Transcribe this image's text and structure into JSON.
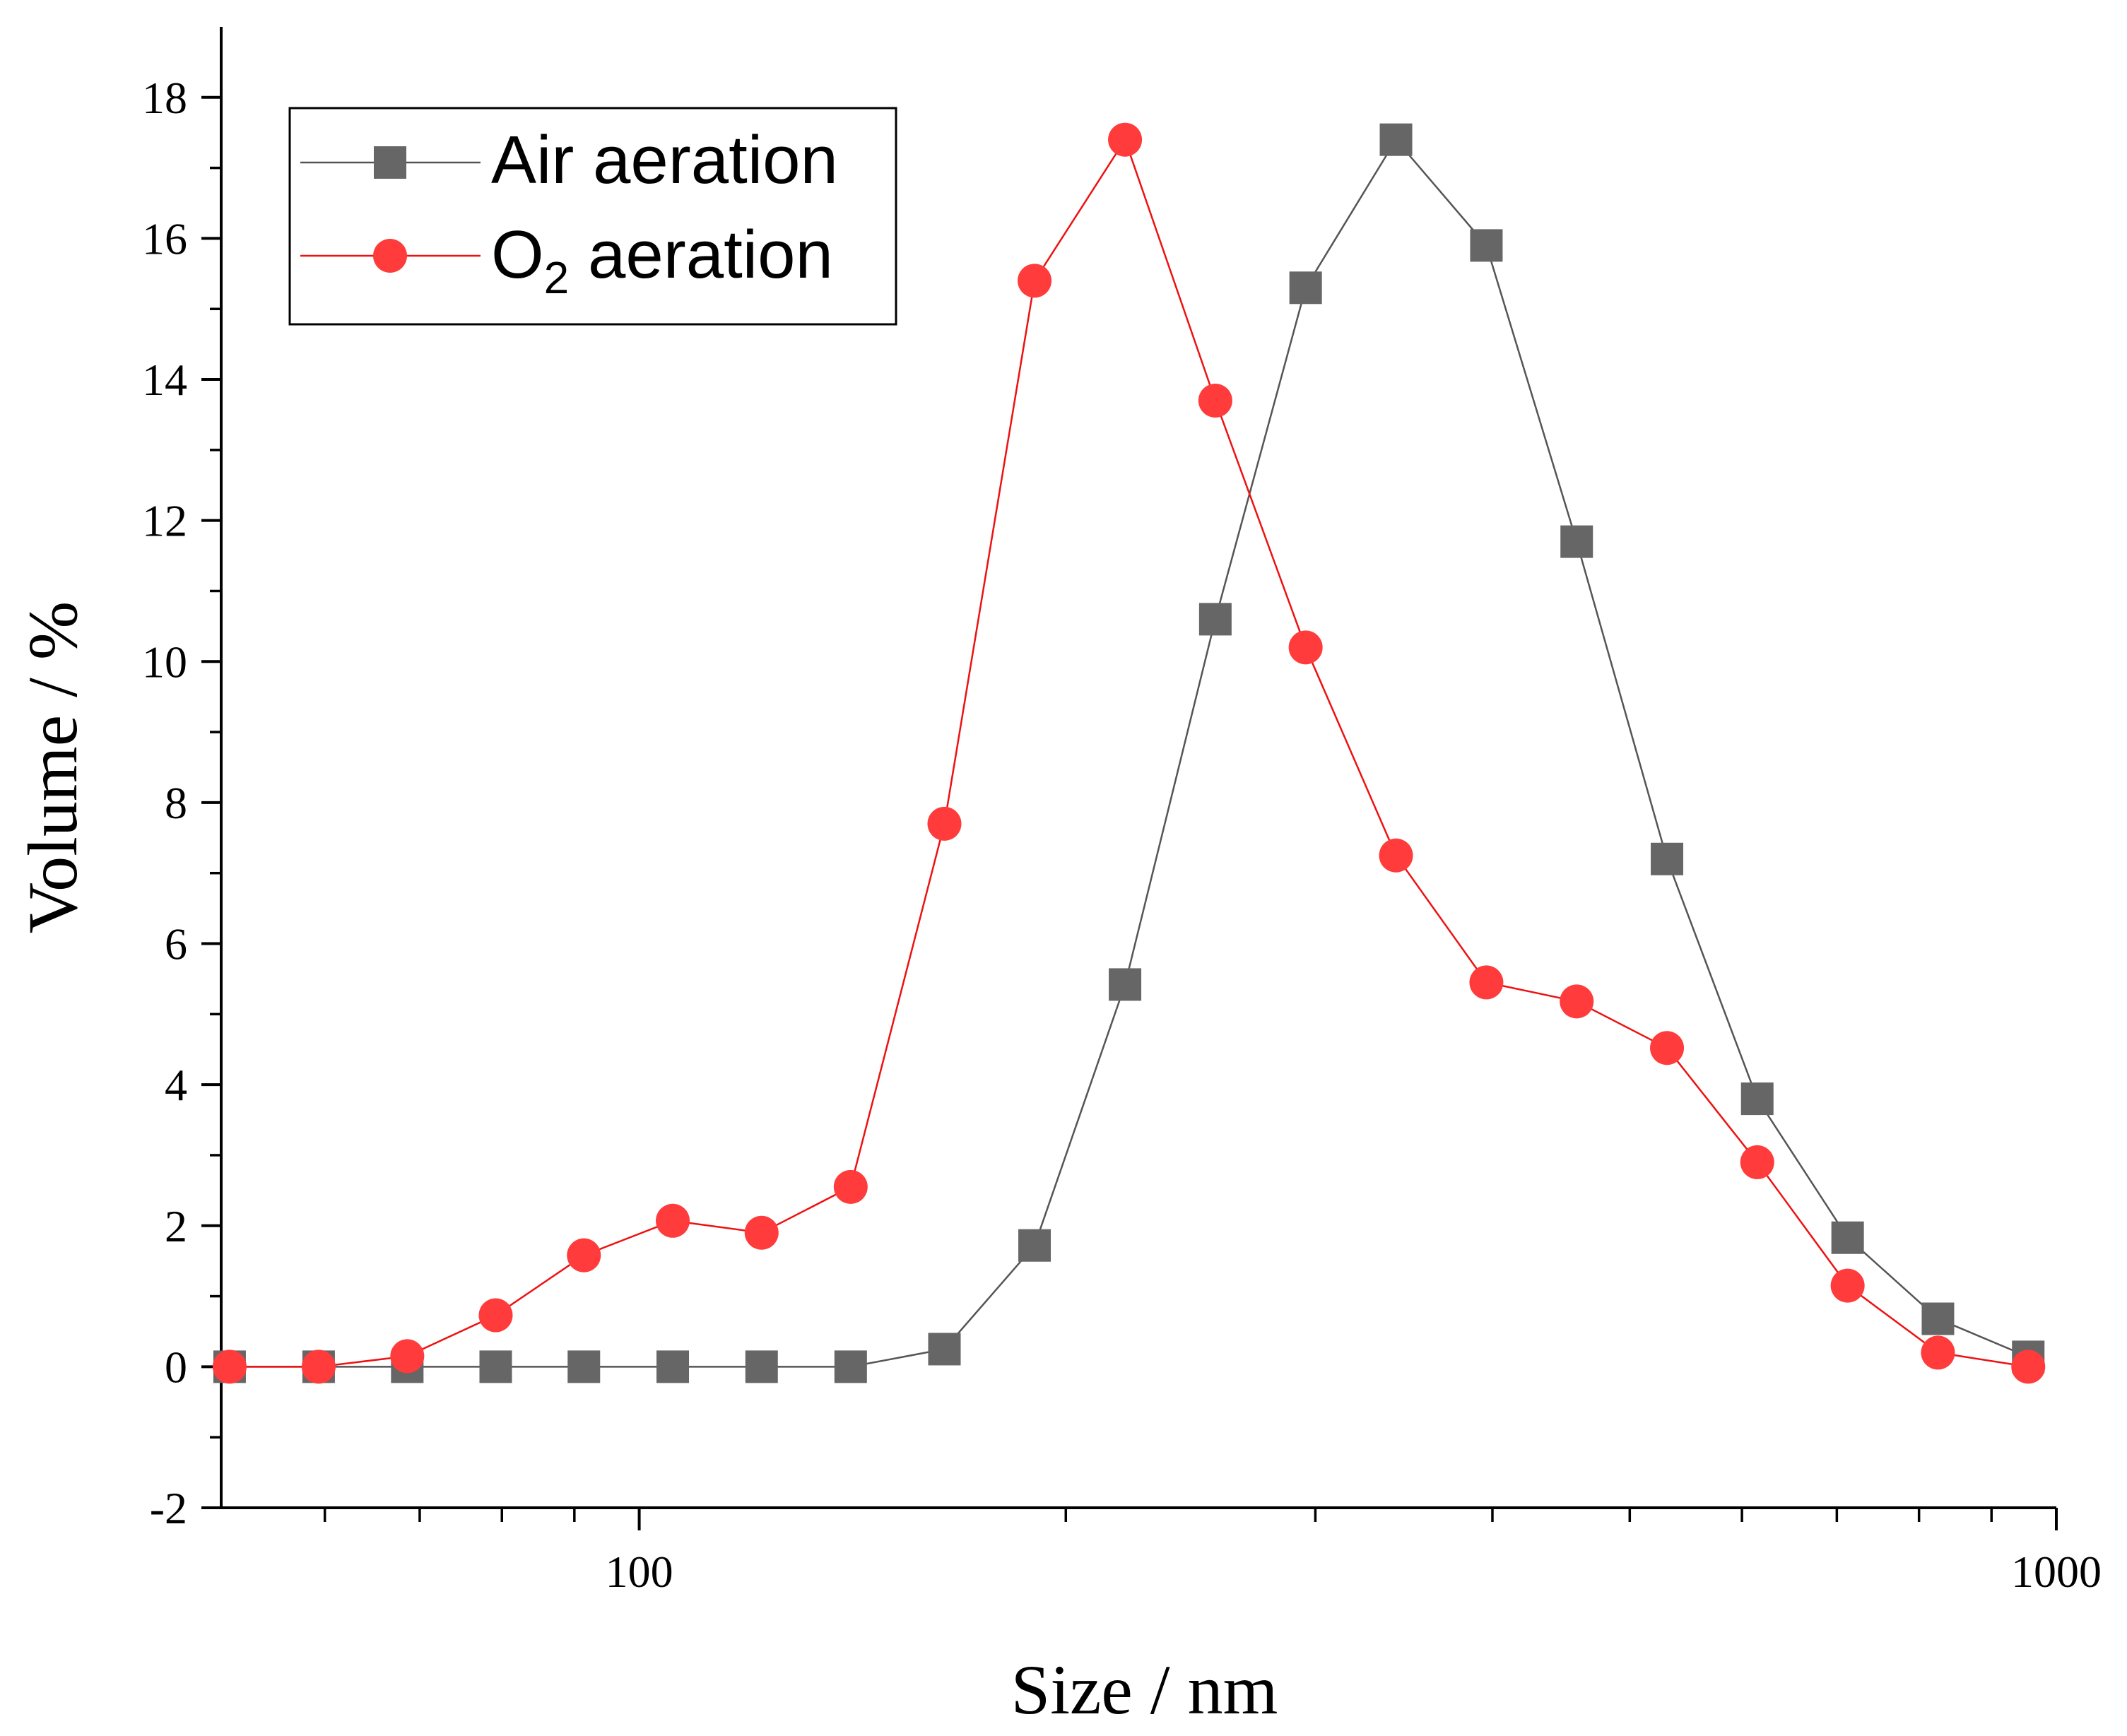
{
  "chart_data": {
    "type": "line",
    "xscale": "log",
    "xlabel": "Size / nm",
    "ylabel": "Volume / %",
    "xlim": [
      50.7,
      1000
    ],
    "ylim": [
      -2,
      19
    ],
    "x_ticks": [
      100,
      1000
    ],
    "x_tick_labels": [
      "100",
      "1000"
    ],
    "y_ticks": [
      -2,
      0,
      2,
      4,
      6,
      8,
      10,
      12,
      14,
      16,
      18
    ],
    "y_tick_labels": [
      "-2",
      "0",
      "2",
      "4",
      "6",
      "8",
      "10",
      "12",
      "14",
      "16",
      "18"
    ],
    "legend_position": "top-left",
    "x": [
      51.4,
      59.4,
      68.6,
      79.2,
      91.4,
      105.6,
      122.0,
      141.0,
      164.2,
      190.1,
      220.2,
      255.0,
      295.3,
      342.0,
      396.1,
      458.7,
      531.2,
      615.1,
      712.4,
      825.0,
      955.4
    ],
    "series": [
      {
        "name": "Air aeration",
        "marker": "square",
        "color": "#555555",
        "marker_color": "#666666",
        "values": [
          0,
          0,
          0,
          0,
          0,
          0,
          0,
          0,
          0.25,
          1.72,
          5.42,
          10.6,
          15.3,
          17.4,
          15.9,
          11.7,
          7.2,
          3.8,
          1.83,
          0.68,
          0.14
        ]
      },
      {
        "name": "O2 aeration",
        "marker": "circle",
        "color": "#ee1111",
        "marker_color": "#ff3b3b",
        "values": [
          0,
          0,
          0.15,
          0.73,
          1.58,
          2.07,
          1.9,
          2.55,
          7.7,
          15.4,
          17.4,
          13.7,
          10.2,
          7.25,
          5.45,
          5.18,
          4.52,
          2.9,
          1.15,
          0.2,
          0
        ]
      }
    ]
  },
  "legend": {
    "air_label": "Air aeration",
    "o2_label_main": "O",
    "o2_label_sub": "2",
    "o2_label_rest": " aeration"
  }
}
